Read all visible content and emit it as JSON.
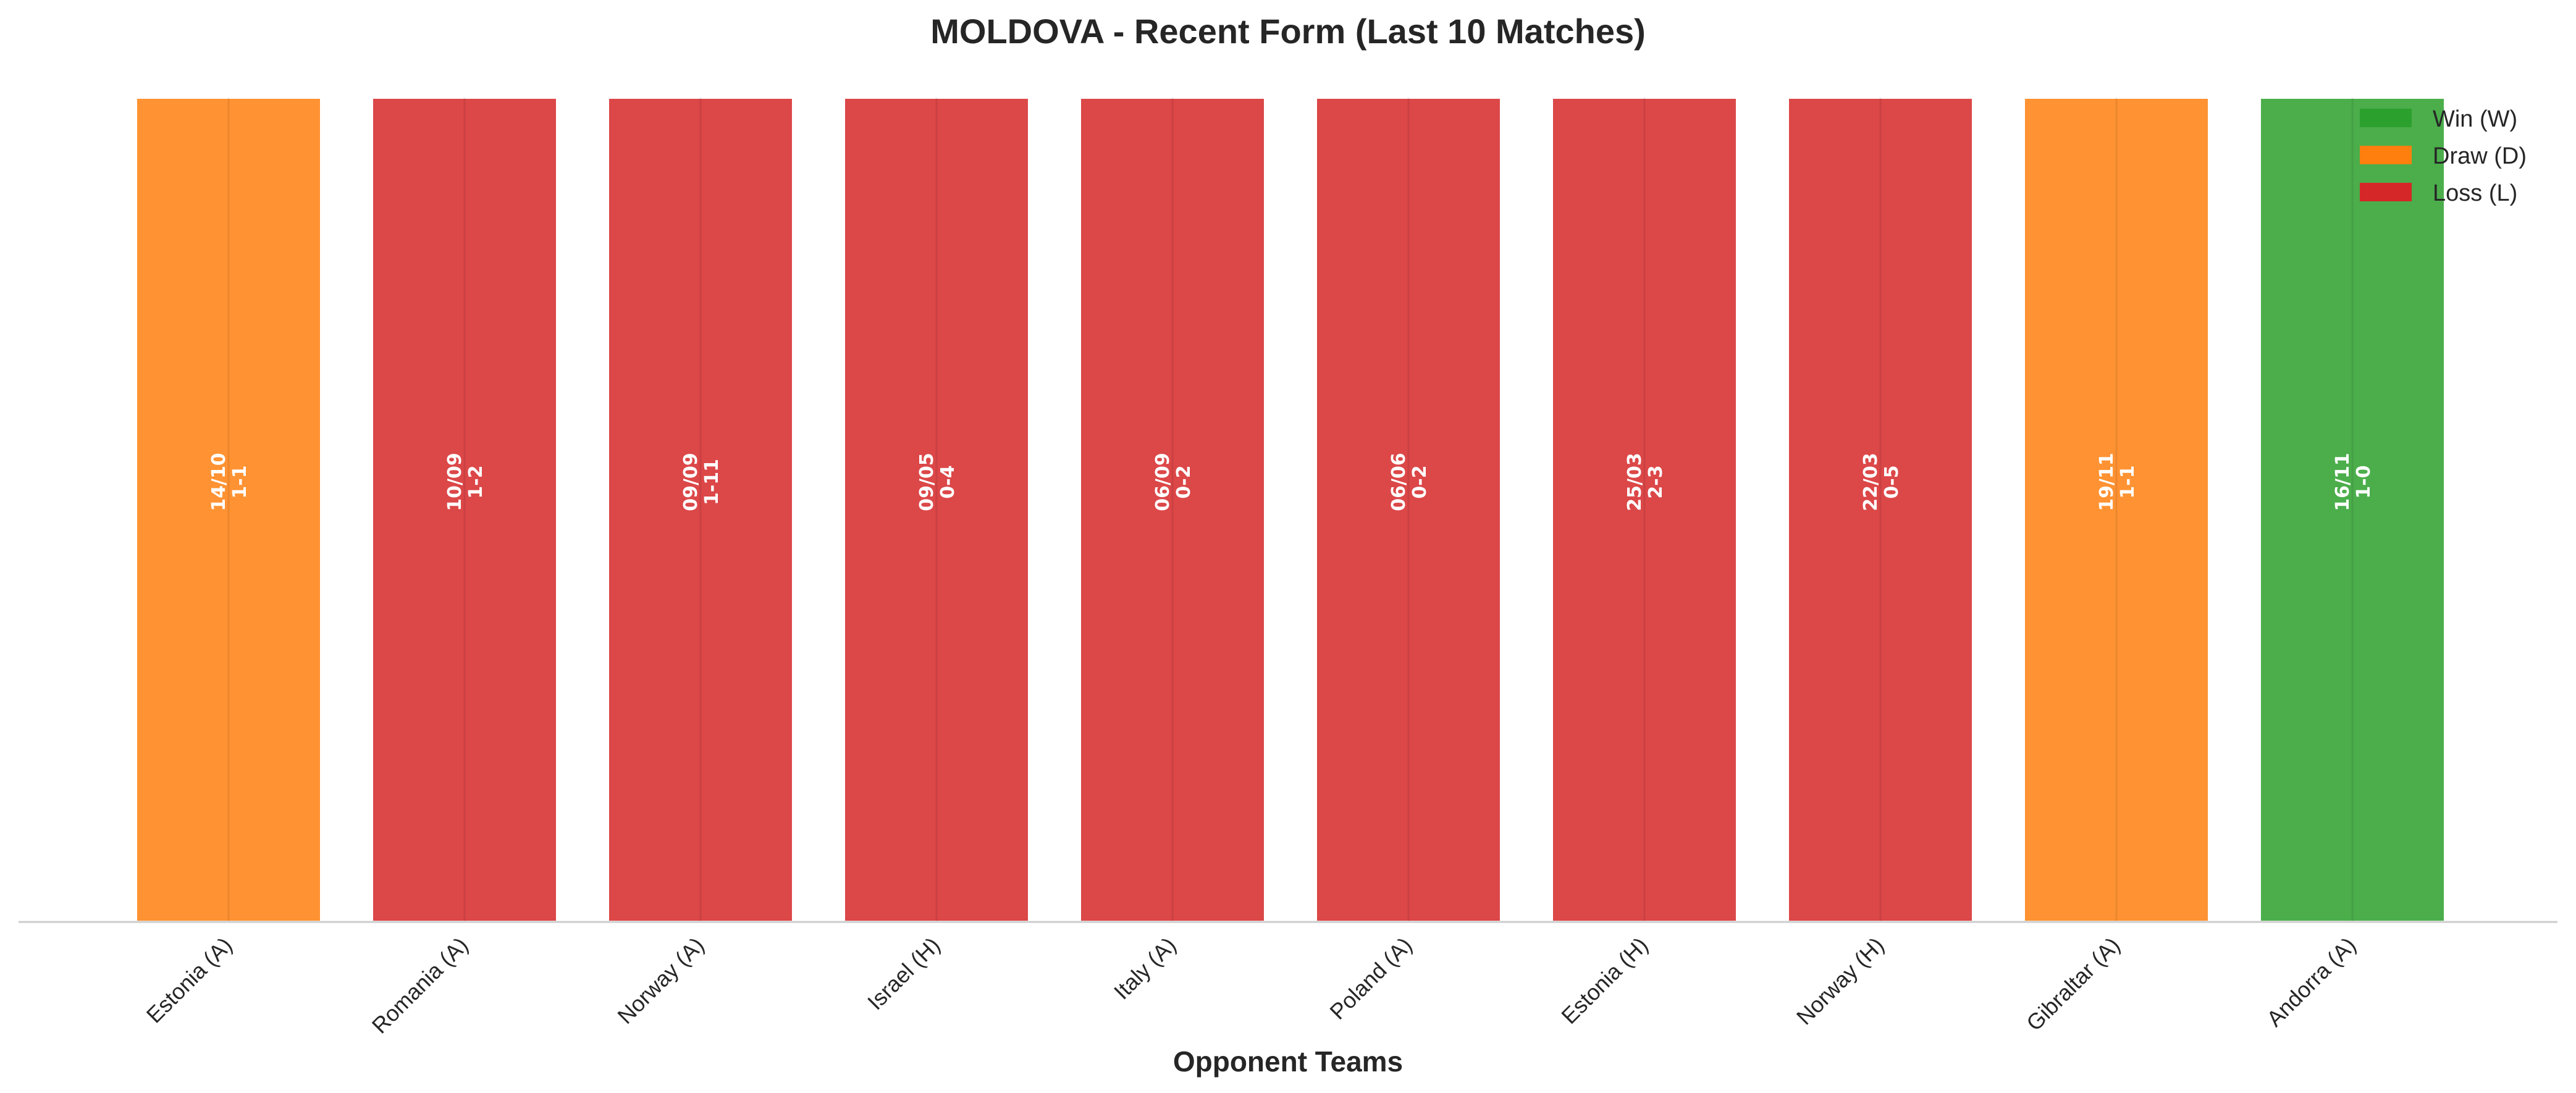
{
  "chart_data": {
    "type": "bar",
    "title": "MOLDOVA - Recent Form (Last 10 Matches)",
    "xlabel": "Opponent Teams",
    "ylabel": "",
    "ylim": [
      0,
      1
    ],
    "grid": false,
    "categories": [
      "Estonia (A)",
      "Romania (A)",
      "Norway (A)",
      "Israel (H)",
      "Italy (A)",
      "Poland (A)",
      "Estonia (H)",
      "Norway (H)",
      "Gibraltar (A)",
      "Andorra (A)"
    ],
    "values": [
      1,
      1,
      1,
      1,
      1,
      1,
      1,
      1,
      1,
      1
    ],
    "results": [
      "D",
      "L",
      "L",
      "L",
      "L",
      "L",
      "L",
      "L",
      "D",
      "W"
    ],
    "dates": [
      "14/10",
      "10/09",
      "09/09",
      "09/05",
      "06/09",
      "06/06",
      "25/03",
      "22/03",
      "19/11",
      "16/11"
    ],
    "scores": [
      "1-1",
      "1-2",
      "1-11",
      "0-4",
      "0-2",
      "0-2",
      "2-3",
      "0-5",
      "1-1",
      "1-0"
    ],
    "colors": {
      "W": "#2ca02c",
      "D": "#ff7f0e",
      "L": "#d62728"
    },
    "legend_position": "top-right",
    "legend": [
      {
        "key": "W",
        "label": "Win (W)"
      },
      {
        "key": "D",
        "label": "Draw (D)"
      },
      {
        "key": "L",
        "label": "Loss (L)"
      }
    ]
  }
}
